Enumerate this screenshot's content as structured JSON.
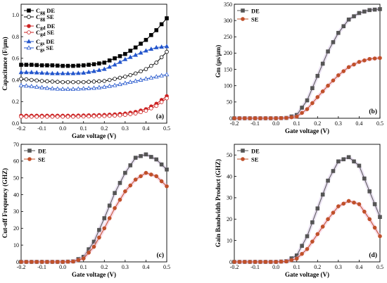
{
  "chart_data": [
    {
      "id": "a",
      "type": "line",
      "panel_label": "(a)",
      "xlabel": "Gate voltage (V)",
      "ylabel": "Capacitance (F/μm)",
      "xlim": [
        -0.2,
        0.5
      ],
      "ylim": [
        0,
        1.1
      ],
      "xticks": [
        -0.2,
        -0.1,
        0,
        0.1,
        0.2,
        0.3,
        0.4,
        0.5
      ],
      "yticks": [
        0,
        0.2,
        0.4,
        0.6,
        0.8,
        1.0
      ],
      "xtick_labels": [
        "-0.2",
        "-0.1",
        "0.0",
        "0.1",
        "0.2",
        "0.3",
        "0.4",
        "0.5"
      ],
      "ytick_labels": [
        "0.0",
        "0.2",
        "0.4",
        "0.6",
        "0.8",
        "1.0"
      ],
      "legend_position": "top-left",
      "x": [
        -0.2,
        -0.15,
        -0.1,
        -0.05,
        0,
        0.05,
        0.1,
        0.15,
        0.2,
        0.25,
        0.3,
        0.35,
        0.4,
        0.45,
        0.5
      ],
      "series": [
        {
          "name": "Cgg DE",
          "sub": "gg",
          "tag": "DE",
          "color": "#000000",
          "marker": "square-filled",
          "values": [
            0.54,
            0.54,
            0.535,
            0.535,
            0.53,
            0.53,
            0.535,
            0.545,
            0.56,
            0.6,
            0.64,
            0.7,
            0.77,
            0.86,
            0.97
          ]
        },
        {
          "name": "Cgg SE",
          "sub": "gg",
          "tag": "SE",
          "color": "#000000",
          "marker": "circle-open",
          "values": [
            0.41,
            0.4,
            0.39,
            0.385,
            0.38,
            0.38,
            0.38,
            0.385,
            0.39,
            0.41,
            0.43,
            0.46,
            0.5,
            0.56,
            0.66
          ]
        },
        {
          "name": "Cgd DE",
          "sub": "gd",
          "tag": "DE",
          "color": "#cc2222",
          "marker": "circle-filled",
          "values": [
            0.07,
            0.07,
            0.07,
            0.07,
            0.07,
            0.07,
            0.072,
            0.074,
            0.077,
            0.082,
            0.09,
            0.105,
            0.13,
            0.18,
            0.25
          ]
        },
        {
          "name": "Cgd SE",
          "sub": "gd",
          "tag": "SE",
          "color": "#cc2222",
          "marker": "circle-open",
          "values": [
            0.06,
            0.06,
            0.06,
            0.06,
            0.06,
            0.06,
            0.062,
            0.064,
            0.066,
            0.07,
            0.077,
            0.09,
            0.115,
            0.16,
            0.23
          ]
        },
        {
          "name": "Cgs DE",
          "sub": "gs",
          "tag": "DE",
          "color": "#2255cc",
          "marker": "triangle-filled",
          "values": [
            0.47,
            0.47,
            0.465,
            0.46,
            0.46,
            0.46,
            0.465,
            0.48,
            0.5,
            0.54,
            0.59,
            0.63,
            0.67,
            0.7,
            0.71
          ]
        },
        {
          "name": "Cgs SE",
          "sub": "gs",
          "tag": "SE",
          "color": "#2255cc",
          "marker": "triangle-open",
          "values": [
            0.35,
            0.34,
            0.33,
            0.32,
            0.315,
            0.315,
            0.32,
            0.325,
            0.335,
            0.35,
            0.37,
            0.39,
            0.41,
            0.43,
            0.45
          ]
        }
      ]
    },
    {
      "id": "b",
      "type": "line",
      "panel_label": "(b)",
      "xlabel": "Gate voltage (V)",
      "ylabel": "Gm (μs/μm)",
      "xlim": [
        -0.2,
        0.5
      ],
      "ylim": [
        0,
        350
      ],
      "xticks": [
        -0.2,
        -0.1,
        0,
        0.1,
        0.2,
        0.3,
        0.4,
        0.5
      ],
      "yticks": [
        0,
        50,
        100,
        150,
        200,
        250,
        300,
        350
      ],
      "xtick_labels": [
        "-0.2",
        "-0.1",
        "0.0",
        "0.1",
        "0.2",
        "0.3",
        "0.4",
        "0.5"
      ],
      "ytick_labels": [
        "0",
        "50",
        "100",
        "150",
        "200",
        "250",
        "300",
        "350"
      ],
      "legend_position": "top-left",
      "x": [
        -0.2,
        -0.15,
        -0.1,
        -0.05,
        0,
        0.05,
        0.1,
        0.15,
        0.2,
        0.25,
        0.3,
        0.35,
        0.4,
        0.45,
        0.5
      ],
      "series": [
        {
          "name": "DE",
          "color": "#555555",
          "marker": "square-filled",
          "values": [
            0,
            0,
            0,
            0,
            0,
            1,
            10,
            55,
            130,
            205,
            262,
            303,
            323,
            332,
            335
          ]
        },
        {
          "name": "SE",
          "color": "#c0502a",
          "marker": "circle-filled",
          "values": [
            0,
            0,
            0,
            0,
            0,
            1,
            5,
            28,
            65,
            100,
            132,
            157,
            173,
            182,
            185
          ]
        }
      ]
    },
    {
      "id": "c",
      "type": "line",
      "panel_label": "(c)",
      "xlabel": "Gate voltage (V)",
      "ylabel": "Cut-off Frequency (GHZ)",
      "xlim": [
        -0.2,
        0.5
      ],
      "ylim": [
        0,
        70
      ],
      "xticks": [
        -0.2,
        -0.1,
        0,
        0.1,
        0.2,
        0.3,
        0.4,
        0.5
      ],
      "yticks": [
        0,
        10,
        20,
        30,
        40,
        50,
        60,
        70
      ],
      "xtick_labels": [
        "-0.2",
        "-0.1",
        "0.0",
        "0.1",
        "0.2",
        "0.3",
        "0.4",
        "0.5"
      ],
      "ytick_labels": [
        "0",
        "10",
        "20",
        "30",
        "40",
        "50",
        "60",
        "70"
      ],
      "legend_position": "top-left",
      "x": [
        -0.2,
        -0.15,
        -0.1,
        -0.05,
        0,
        0.05,
        0.1,
        0.15,
        0.2,
        0.25,
        0.3,
        0.35,
        0.4,
        0.45,
        0.5
      ],
      "series": [
        {
          "name": "DE",
          "color": "#555555",
          "marker": "square-filled",
          "values": [
            0,
            0,
            0,
            0,
            0,
            0.3,
            3,
            12,
            26,
            41,
            53,
            62,
            64,
            61,
            55
          ]
        },
        {
          "name": "SE",
          "color": "#c0502a",
          "marker": "circle-filled",
          "values": [
            0,
            0,
            0,
            0,
            0,
            0.2,
            2,
            9,
            20,
            32,
            42,
            49,
            53,
            51,
            45
          ]
        }
      ]
    },
    {
      "id": "d",
      "type": "line",
      "panel_label": "(d)",
      "xlabel": "Gate voltage (V)",
      "ylabel": "Gain Bandwidth Product (GHZ)",
      "xlim": [
        -0.2,
        0.5
      ],
      "ylim": [
        0,
        55
      ],
      "xticks": [
        -0.2,
        -0.1,
        0,
        0.1,
        0.2,
        0.3,
        0.4,
        0.5
      ],
      "yticks": [
        0,
        10,
        20,
        30,
        40,
        50
      ],
      "xtick_labels": [
        "-0.2",
        "-0.1",
        "0.0",
        "0.1",
        "0.2",
        "0.3",
        "0.4",
        "0.5"
      ],
      "ytick_labels": [
        "0",
        "10",
        "20",
        "30",
        "40",
        "50"
      ],
      "legend_position": "top-left",
      "x": [
        -0.2,
        -0.15,
        -0.1,
        -0.05,
        0,
        0.05,
        0.1,
        0.15,
        0.2,
        0.25,
        0.3,
        0.35,
        0.4,
        0.45,
        0.5
      ],
      "series": [
        {
          "name": "DE",
          "color": "#555555",
          "marker": "square-filled",
          "values": [
            0,
            0,
            0,
            0,
            0,
            0.3,
            3,
            12,
            25,
            38,
            47,
            49,
            45,
            33,
            21
          ]
        },
        {
          "name": "SE",
          "color": "#c0502a",
          "marker": "circle-filled",
          "values": [
            0,
            0,
            0,
            0,
            0,
            0.2,
            1.5,
            6,
            13,
            20,
            26,
            28.5,
            27,
            20,
            12
          ]
        }
      ]
    }
  ]
}
